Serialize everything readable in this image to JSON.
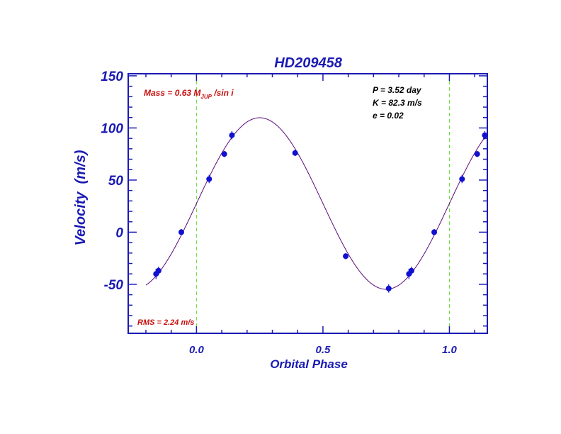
{
  "chart_data": {
    "type": "scatter",
    "title": "HD209458",
    "xlabel": "Orbital Phase",
    "ylabel": "Velocity  (m/s)",
    "xlim": [
      -0.27,
      1.15
    ],
    "ylim": [
      -97,
      152
    ],
    "x_ticks": [
      0.0,
      0.5,
      1.0
    ],
    "x_tick_labels": [
      "0.0",
      "0.5",
      "1.0"
    ],
    "y_ticks": [
      -50,
      0,
      50,
      100,
      150
    ],
    "y_tick_labels": [
      "-50",
      "0",
      "50",
      "100",
      "150"
    ],
    "grid": false,
    "reference_lines_x": [
      0.0,
      1.0
    ],
    "annotations": {
      "mass_prefix": "Mass = 0.63 M",
      "mass_sub": "JUP",
      "mass_suffix": " /sin i",
      "rms": "RMS = 2.24 m/s",
      "params": [
        "P = 3.52 day",
        "K = 82.3 m/s",
        "e = 0.02"
      ]
    },
    "fit_curve": {
      "type": "sinusoid",
      "K": 82.3,
      "offset": 27.5,
      "phase_of_max": 0.25,
      "x_range": [
        -0.2,
        1.15
      ]
    },
    "points": [
      {
        "x": -0.15,
        "y": -37,
        "err": 4
      },
      {
        "x": -0.16,
        "y": -40,
        "err": 5
      },
      {
        "x": -0.06,
        "y": 0,
        "err": 3
      },
      {
        "x": 0.05,
        "y": 51,
        "err": 4
      },
      {
        "x": 0.11,
        "y": 75,
        "err": 3
      },
      {
        "x": 0.14,
        "y": 93,
        "err": 4
      },
      {
        "x": 0.39,
        "y": 76,
        "err": 3
      },
      {
        "x": 0.59,
        "y": -23,
        "err": 3
      },
      {
        "x": 0.76,
        "y": -54,
        "err": 4
      },
      {
        "x": 0.85,
        "y": -37,
        "err": 4
      },
      {
        "x": 0.84,
        "y": -40,
        "err": 5
      },
      {
        "x": 0.94,
        "y": 0,
        "err": 3
      },
      {
        "x": 1.05,
        "y": 51,
        "err": 4
      },
      {
        "x": 1.11,
        "y": 75,
        "err": 3
      },
      {
        "x": 1.14,
        "y": 93,
        "err": 4
      }
    ],
    "colors": {
      "axes": "#1a1ab4",
      "points": "#1010d0",
      "curve": "#5a0a7a",
      "reference": "#66dd33",
      "annotation_red": "#c81010",
      "annotation_black": "#000000"
    }
  }
}
